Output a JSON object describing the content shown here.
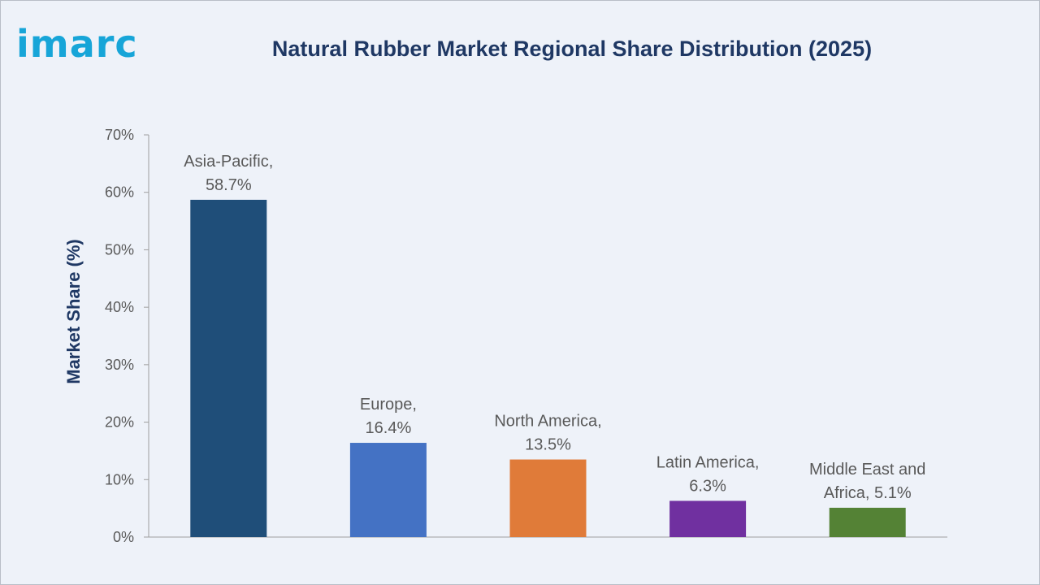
{
  "header": {
    "logo_text": "imarc",
    "title": "Natural Rubber Market Regional Share Distribution (2025)"
  },
  "colors": {
    "background": "#eef2f9",
    "title": "#1f3864",
    "logo": "#17a5d8",
    "axis": "#9e9e9e",
    "label": "#595959"
  },
  "chart_data": {
    "type": "bar",
    "title": "Natural Rubber Market Regional Share Distribution (2025)",
    "xlabel": "",
    "ylabel": "Market Share (%)",
    "ylim": [
      0,
      70
    ],
    "yticks": [
      "0%",
      "10%",
      "20%",
      "30%",
      "40%",
      "50%",
      "60%",
      "70%"
    ],
    "grid": false,
    "legend": "none",
    "categories": [
      "Asia-Pacific",
      "Europe",
      "North America",
      "Latin America",
      "Middle East and Africa"
    ],
    "values": [
      58.7,
      16.4,
      13.5,
      6.3,
      5.1
    ],
    "bar_colors": [
      "#1f4e79",
      "#4472c4",
      "#e07b39",
      "#7030a0",
      "#548235"
    ],
    "data_labels": [
      [
        "Asia-Pacific,",
        "58.7%"
      ],
      [
        "Europe,",
        "16.4%"
      ],
      [
        "North America,",
        "13.5%"
      ],
      [
        "Latin America,",
        "6.3%"
      ],
      [
        "Middle East and",
        "Africa, 5.1%"
      ]
    ]
  }
}
